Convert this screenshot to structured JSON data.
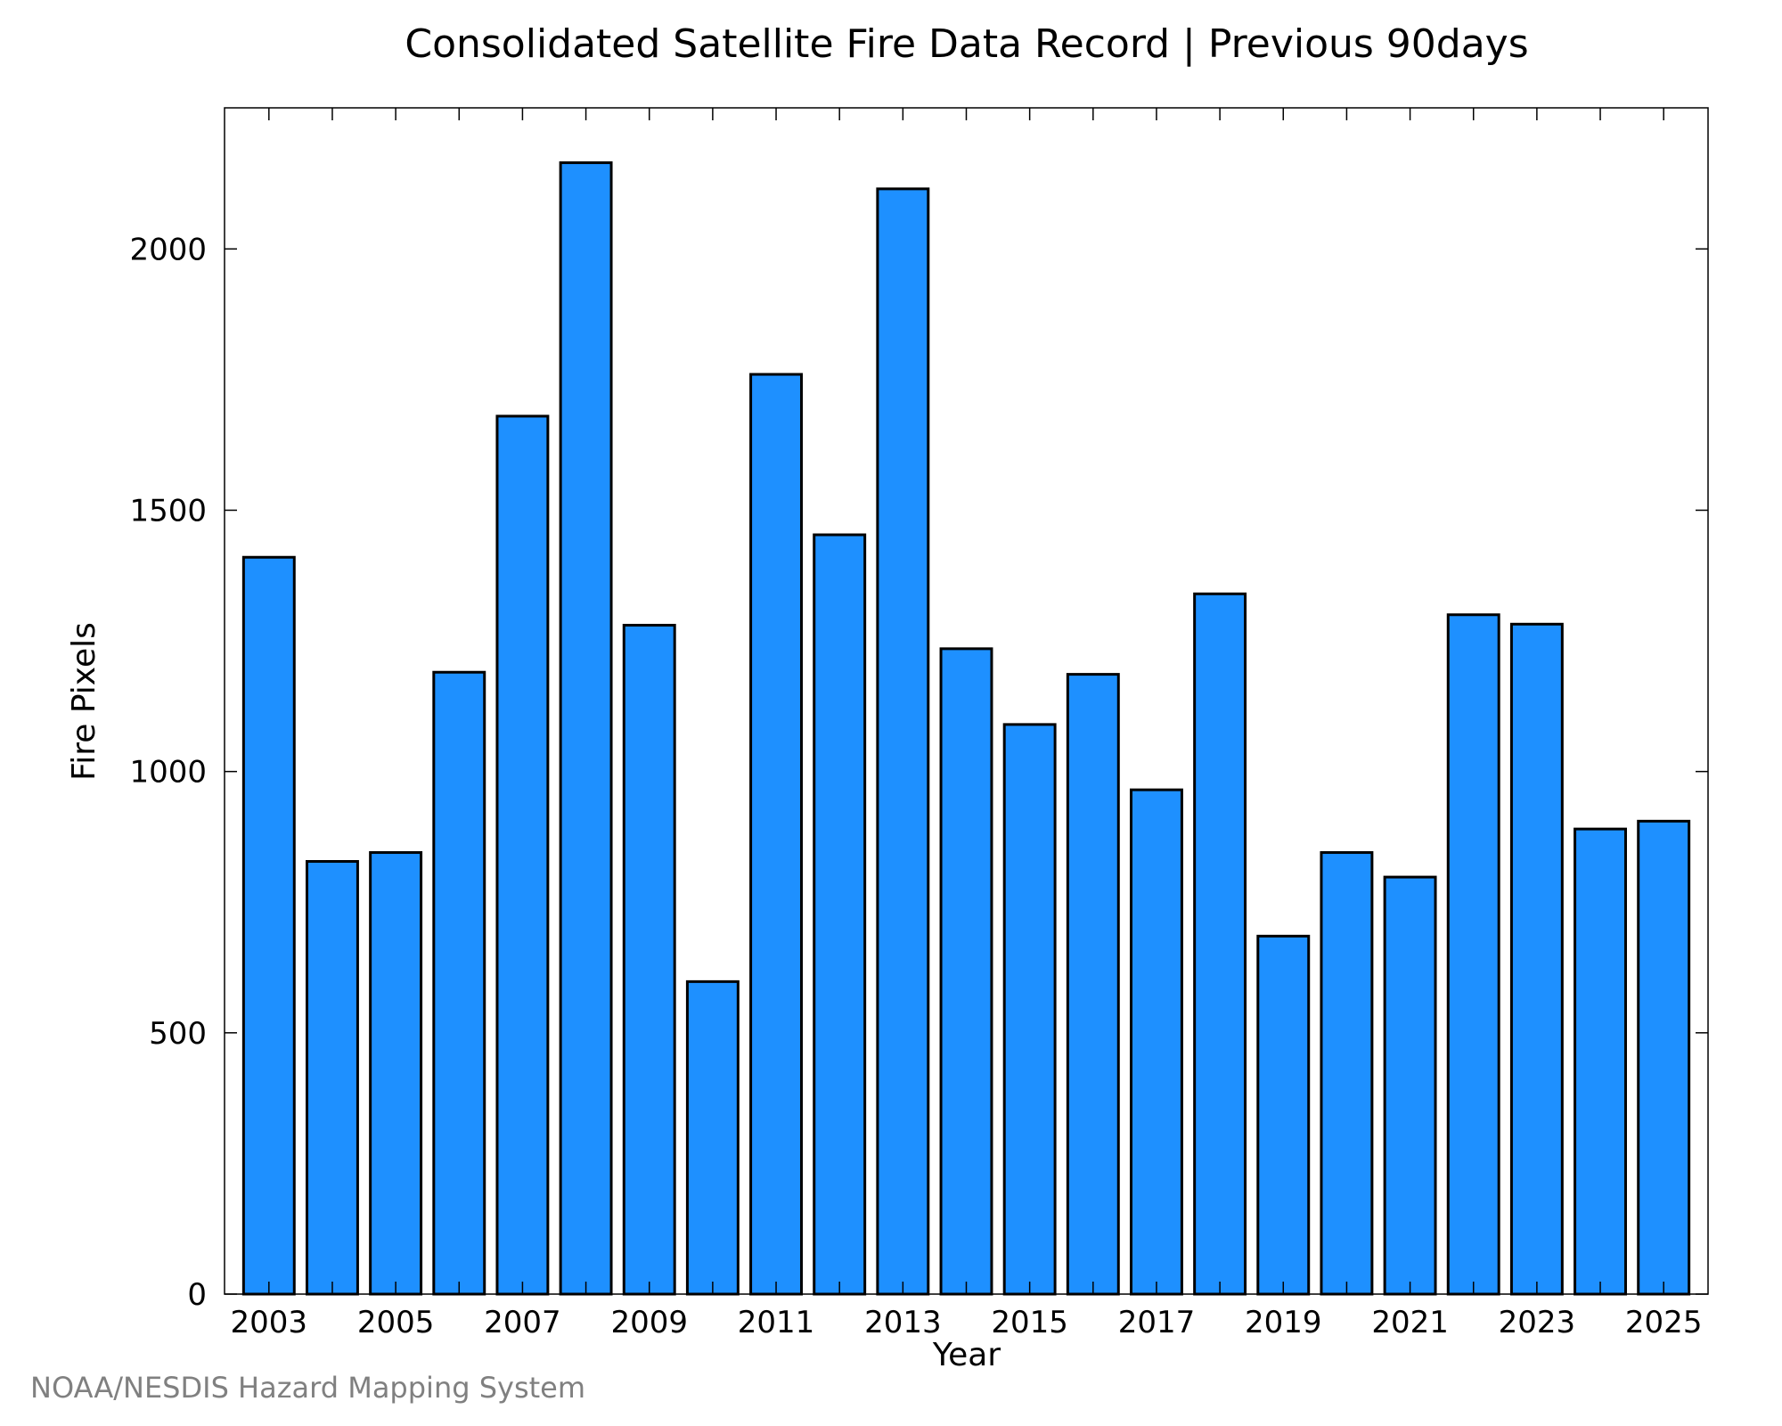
{
  "chart_data": {
    "type": "bar",
    "title": "Consolidated Satellite Fire Data Record | Previous 90days",
    "xlabel": "Year",
    "ylabel": "Fire Pixels",
    "categories": [
      "2003",
      "2004",
      "2005",
      "2006",
      "2007",
      "2008",
      "2009",
      "2010",
      "2011",
      "2012",
      "2013",
      "2014",
      "2015",
      "2016",
      "2017",
      "2018",
      "2019",
      "2020",
      "2021",
      "2022",
      "2023",
      "2024",
      "2025"
    ],
    "values": [
      1410,
      828,
      845,
      1190,
      1680,
      2165,
      1280,
      598,
      1760,
      1453,
      2115,
      1235,
      1090,
      1186,
      965,
      1340,
      685,
      845,
      798,
      1300,
      1282,
      890,
      905
    ],
    "x_tick_labels": [
      "2003",
      "2005",
      "2007",
      "2009",
      "2011",
      "2013",
      "2015",
      "2017",
      "2019",
      "2021",
      "2023",
      "2025"
    ],
    "y_ticks": [
      0,
      500,
      1000,
      1500,
      2000
    ],
    "ylim": [
      0,
      2270
    ],
    "bar_color": "#1E90FF",
    "bar_edge_color": "#000000",
    "grid": false,
    "legend": "none"
  },
  "source_note": "NOAA/NESDIS Hazard Mapping System"
}
